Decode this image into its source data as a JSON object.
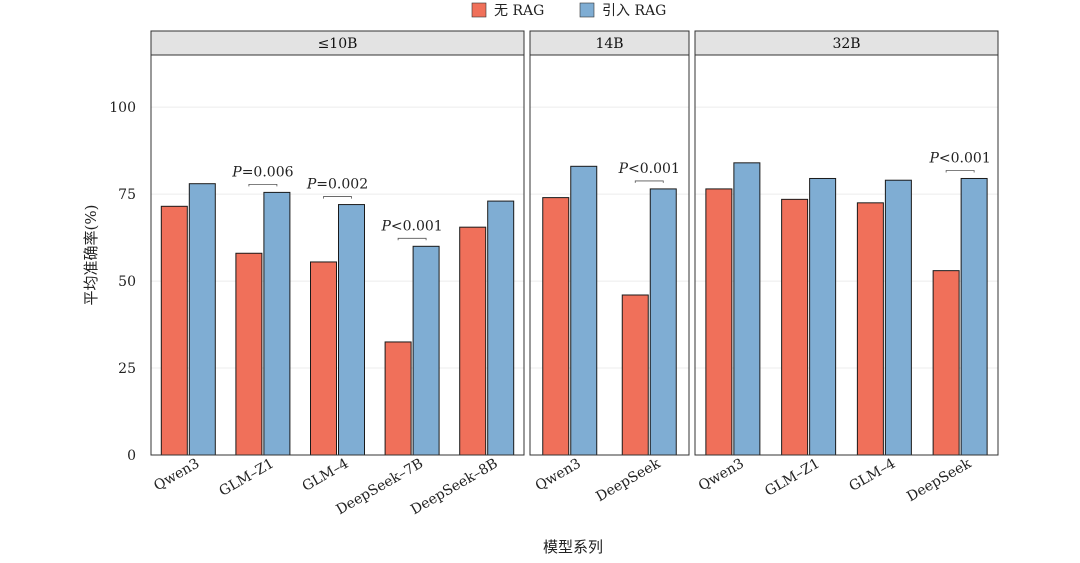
{
  "chart_data": {
    "type": "bar",
    "ylabel": "平均准确率(%)",
    "xlabel": "模型系列",
    "ylim": [
      0,
      115
    ],
    "yticks": [
      0,
      25,
      50,
      75,
      100
    ],
    "grid": true,
    "legend_position": "top-center",
    "series": [
      {
        "name": "无 RAG",
        "color": "#f0705a"
      },
      {
        "name": "引入 RAG",
        "color": "#7fadd3"
      }
    ],
    "panels": [
      {
        "title": "≤10B",
        "categories": [
          "Qwen3",
          "GLM–Z1",
          "GLM–4",
          "DeepSeek–7B",
          "DeepSeek–8B"
        ],
        "series_values": [
          [
            71.5,
            58,
            55.5,
            32.5,
            65.5
          ],
          [
            78,
            75.5,
            72,
            60,
            73
          ]
        ],
        "annotations": [
          {
            "category": "GLM–Z1",
            "label_prefix": "P",
            "label_rest": "=0.006"
          },
          {
            "category": "GLM–4",
            "label_prefix": "P",
            "label_rest": "=0.002"
          },
          {
            "category": "DeepSeek–7B",
            "label_prefix": "P",
            "label_rest": "<0.001"
          }
        ]
      },
      {
        "title": "14B",
        "categories": [
          "Qwen3",
          "DeepSeek"
        ],
        "series_values": [
          [
            74,
            46
          ],
          [
            83,
            76.5
          ]
        ],
        "annotations": [
          {
            "category": "DeepSeek",
            "label_prefix": "P",
            "label_rest": "<0.001"
          }
        ]
      },
      {
        "title": "32B",
        "categories": [
          "Qwen3",
          "GLM–Z1",
          "GLM–4",
          "DeepSeek"
        ],
        "series_values": [
          [
            76.5,
            73.5,
            72.5,
            53
          ],
          [
            84,
            79.5,
            79,
            79.5
          ]
        ],
        "annotations": [
          {
            "category": "DeepSeek",
            "label_prefix": "P",
            "label_rest": "<0.001"
          }
        ]
      }
    ]
  }
}
